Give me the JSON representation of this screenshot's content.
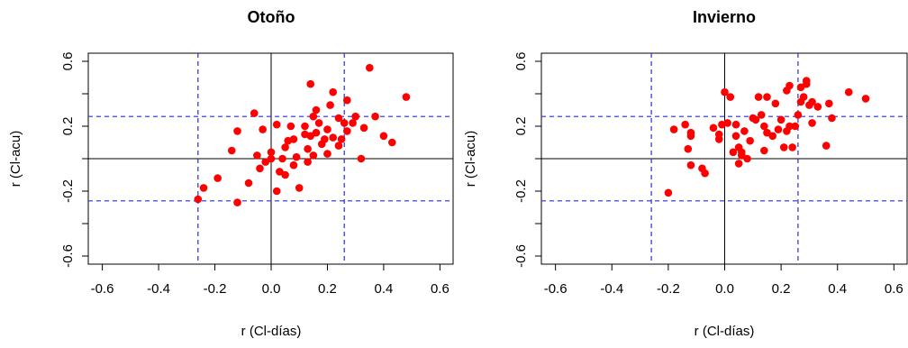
{
  "chart_data": [
    {
      "type": "scatter",
      "title": "Otoño",
      "xlabel": "r (Cl-días)",
      "ylabel": "r (Cl-acu)",
      "xlim": [
        -0.65,
        0.65
      ],
      "ylim": [
        -0.65,
        0.65
      ],
      "xticks": [
        -0.6,
        -0.4,
        -0.2,
        0.0,
        0.2,
        0.4,
        0.6
      ],
      "yticks": [
        -0.6,
        -0.2,
        0.2,
        0.6
      ],
      "reference_lines": {
        "solid_black": {
          "x": 0,
          "y": 0
        },
        "dashed_blue": {
          "x": [
            -0.26,
            0.26
          ],
          "y": [
            -0.26,
            0.26
          ]
        }
      },
      "point_color": "#ff0000",
      "points": [
        [
          -0.26,
          -0.25
        ],
        [
          -0.24,
          -0.18
        ],
        [
          -0.19,
          -0.12
        ],
        [
          -0.14,
          0.05
        ],
        [
          -0.12,
          -0.27
        ],
        [
          -0.12,
          0.17
        ],
        [
          -0.08,
          -0.15
        ],
        [
          -0.06,
          0.28
        ],
        [
          -0.05,
          0.02
        ],
        [
          -0.04,
          -0.06
        ],
        [
          -0.03,
          0.18
        ],
        [
          -0.02,
          -0.02
        ],
        [
          0.0,
          0.04
        ],
        [
          0.0,
          0.0
        ],
        [
          0.02,
          -0.2
        ],
        [
          0.02,
          0.21
        ],
        [
          0.03,
          -0.08
        ],
        [
          0.04,
          0.0
        ],
        [
          0.05,
          0.07
        ],
        [
          0.05,
          -0.1
        ],
        [
          0.06,
          0.11
        ],
        [
          0.07,
          0.2
        ],
        [
          0.08,
          -0.04
        ],
        [
          0.08,
          0.12
        ],
        [
          0.09,
          0.01
        ],
        [
          0.1,
          -0.18
        ],
        [
          0.12,
          0.2
        ],
        [
          0.12,
          0.15
        ],
        [
          0.13,
          -0.02
        ],
        [
          0.13,
          0.06
        ],
        [
          0.14,
          0.46
        ],
        [
          0.14,
          0.14
        ],
        [
          0.15,
          0.26
        ],
        [
          0.15,
          0.02
        ],
        [
          0.16,
          0.16
        ],
        [
          0.16,
          0.3
        ],
        [
          0.17,
          0.22
        ],
        [
          0.18,
          0.09
        ],
        [
          0.19,
          0.12
        ],
        [
          0.2,
          0.18
        ],
        [
          0.2,
          0.03
        ],
        [
          0.21,
          0.33
        ],
        [
          0.22,
          0.13
        ],
        [
          0.22,
          0.41
        ],
        [
          0.24,
          0.08
        ],
        [
          0.24,
          0.25
        ],
        [
          0.25,
          0.12
        ],
        [
          0.26,
          0.22
        ],
        [
          0.27,
          0.36
        ],
        [
          0.27,
          0.17
        ],
        [
          0.29,
          0.22
        ],
        [
          0.3,
          0.26
        ],
        [
          0.32,
          0.0
        ],
        [
          0.33,
          0.19
        ],
        [
          0.35,
          0.56
        ],
        [
          0.37,
          0.26
        ],
        [
          0.4,
          0.14
        ],
        [
          0.43,
          0.1
        ],
        [
          0.48,
          0.38
        ]
      ]
    },
    {
      "type": "scatter",
      "title": "Invierno",
      "xlabel": "r (Cl-días)",
      "ylabel": "r (Cl-acu)",
      "xlim": [
        -0.65,
        0.65
      ],
      "ylim": [
        -0.65,
        0.65
      ],
      "xticks": [
        -0.6,
        -0.4,
        -0.2,
        0.0,
        0.2,
        0.4,
        0.6
      ],
      "yticks": [
        -0.6,
        -0.2,
        0.2,
        0.6
      ],
      "reference_lines": {
        "solid_black": {
          "x": 0,
          "y": 0
        },
        "dashed_blue": {
          "x": [
            -0.26,
            0.26
          ],
          "y": [
            -0.26,
            0.26
          ]
        }
      },
      "point_color": "#ff0000",
      "points": [
        [
          -0.2,
          -0.21
        ],
        [
          -0.18,
          0.18
        ],
        [
          -0.14,
          0.21
        ],
        [
          -0.13,
          0.06
        ],
        [
          -0.12,
          0.16
        ],
        [
          -0.12,
          0.14
        ],
        [
          -0.12,
          -0.04
        ],
        [
          -0.08,
          -0.06
        ],
        [
          -0.07,
          -0.09
        ],
        [
          -0.04,
          0.19
        ],
        [
          -0.02,
          0.12
        ],
        [
          -0.02,
          0.15
        ],
        [
          -0.01,
          0.21
        ],
        [
          0.0,
          0.41
        ],
        [
          0.01,
          0.22
        ],
        [
          0.02,
          0.38
        ],
        [
          0.03,
          0.04
        ],
        [
          0.04,
          0.21
        ],
        [
          0.04,
          0.14
        ],
        [
          0.05,
          -0.03
        ],
        [
          0.05,
          0.07
        ],
        [
          0.06,
          0.02
        ],
        [
          0.06,
          0.04
        ],
        [
          0.07,
          0.17
        ],
        [
          0.08,
          0.0
        ],
        [
          0.09,
          0.11
        ],
        [
          0.1,
          0.25
        ],
        [
          0.11,
          0.24
        ],
        [
          0.12,
          0.38
        ],
        [
          0.13,
          0.27
        ],
        [
          0.14,
          0.05
        ],
        [
          0.14,
          0.2
        ],
        [
          0.15,
          0.38
        ],
        [
          0.15,
          0.16
        ],
        [
          0.17,
          0.14
        ],
        [
          0.18,
          0.34
        ],
        [
          0.19,
          0.18
        ],
        [
          0.2,
          0.24
        ],
        [
          0.21,
          0.07
        ],
        [
          0.22,
          0.42
        ],
        [
          0.22,
          0.17
        ],
        [
          0.23,
          0.45
        ],
        [
          0.23,
          0.2
        ],
        [
          0.24,
          0.07
        ],
        [
          0.25,
          0.2
        ],
        [
          0.26,
          0.27
        ],
        [
          0.27,
          0.44
        ],
        [
          0.27,
          0.35
        ],
        [
          0.28,
          0.38
        ],
        [
          0.29,
          0.46
        ],
        [
          0.29,
          0.48
        ],
        [
          0.3,
          0.33
        ],
        [
          0.31,
          0.35
        ],
        [
          0.31,
          0.22
        ],
        [
          0.33,
          0.32
        ],
        [
          0.36,
          0.08
        ],
        [
          0.37,
          0.34
        ],
        [
          0.38,
          0.25
        ],
        [
          0.44,
          0.41
        ],
        [
          0.5,
          0.37
        ]
      ]
    }
  ]
}
